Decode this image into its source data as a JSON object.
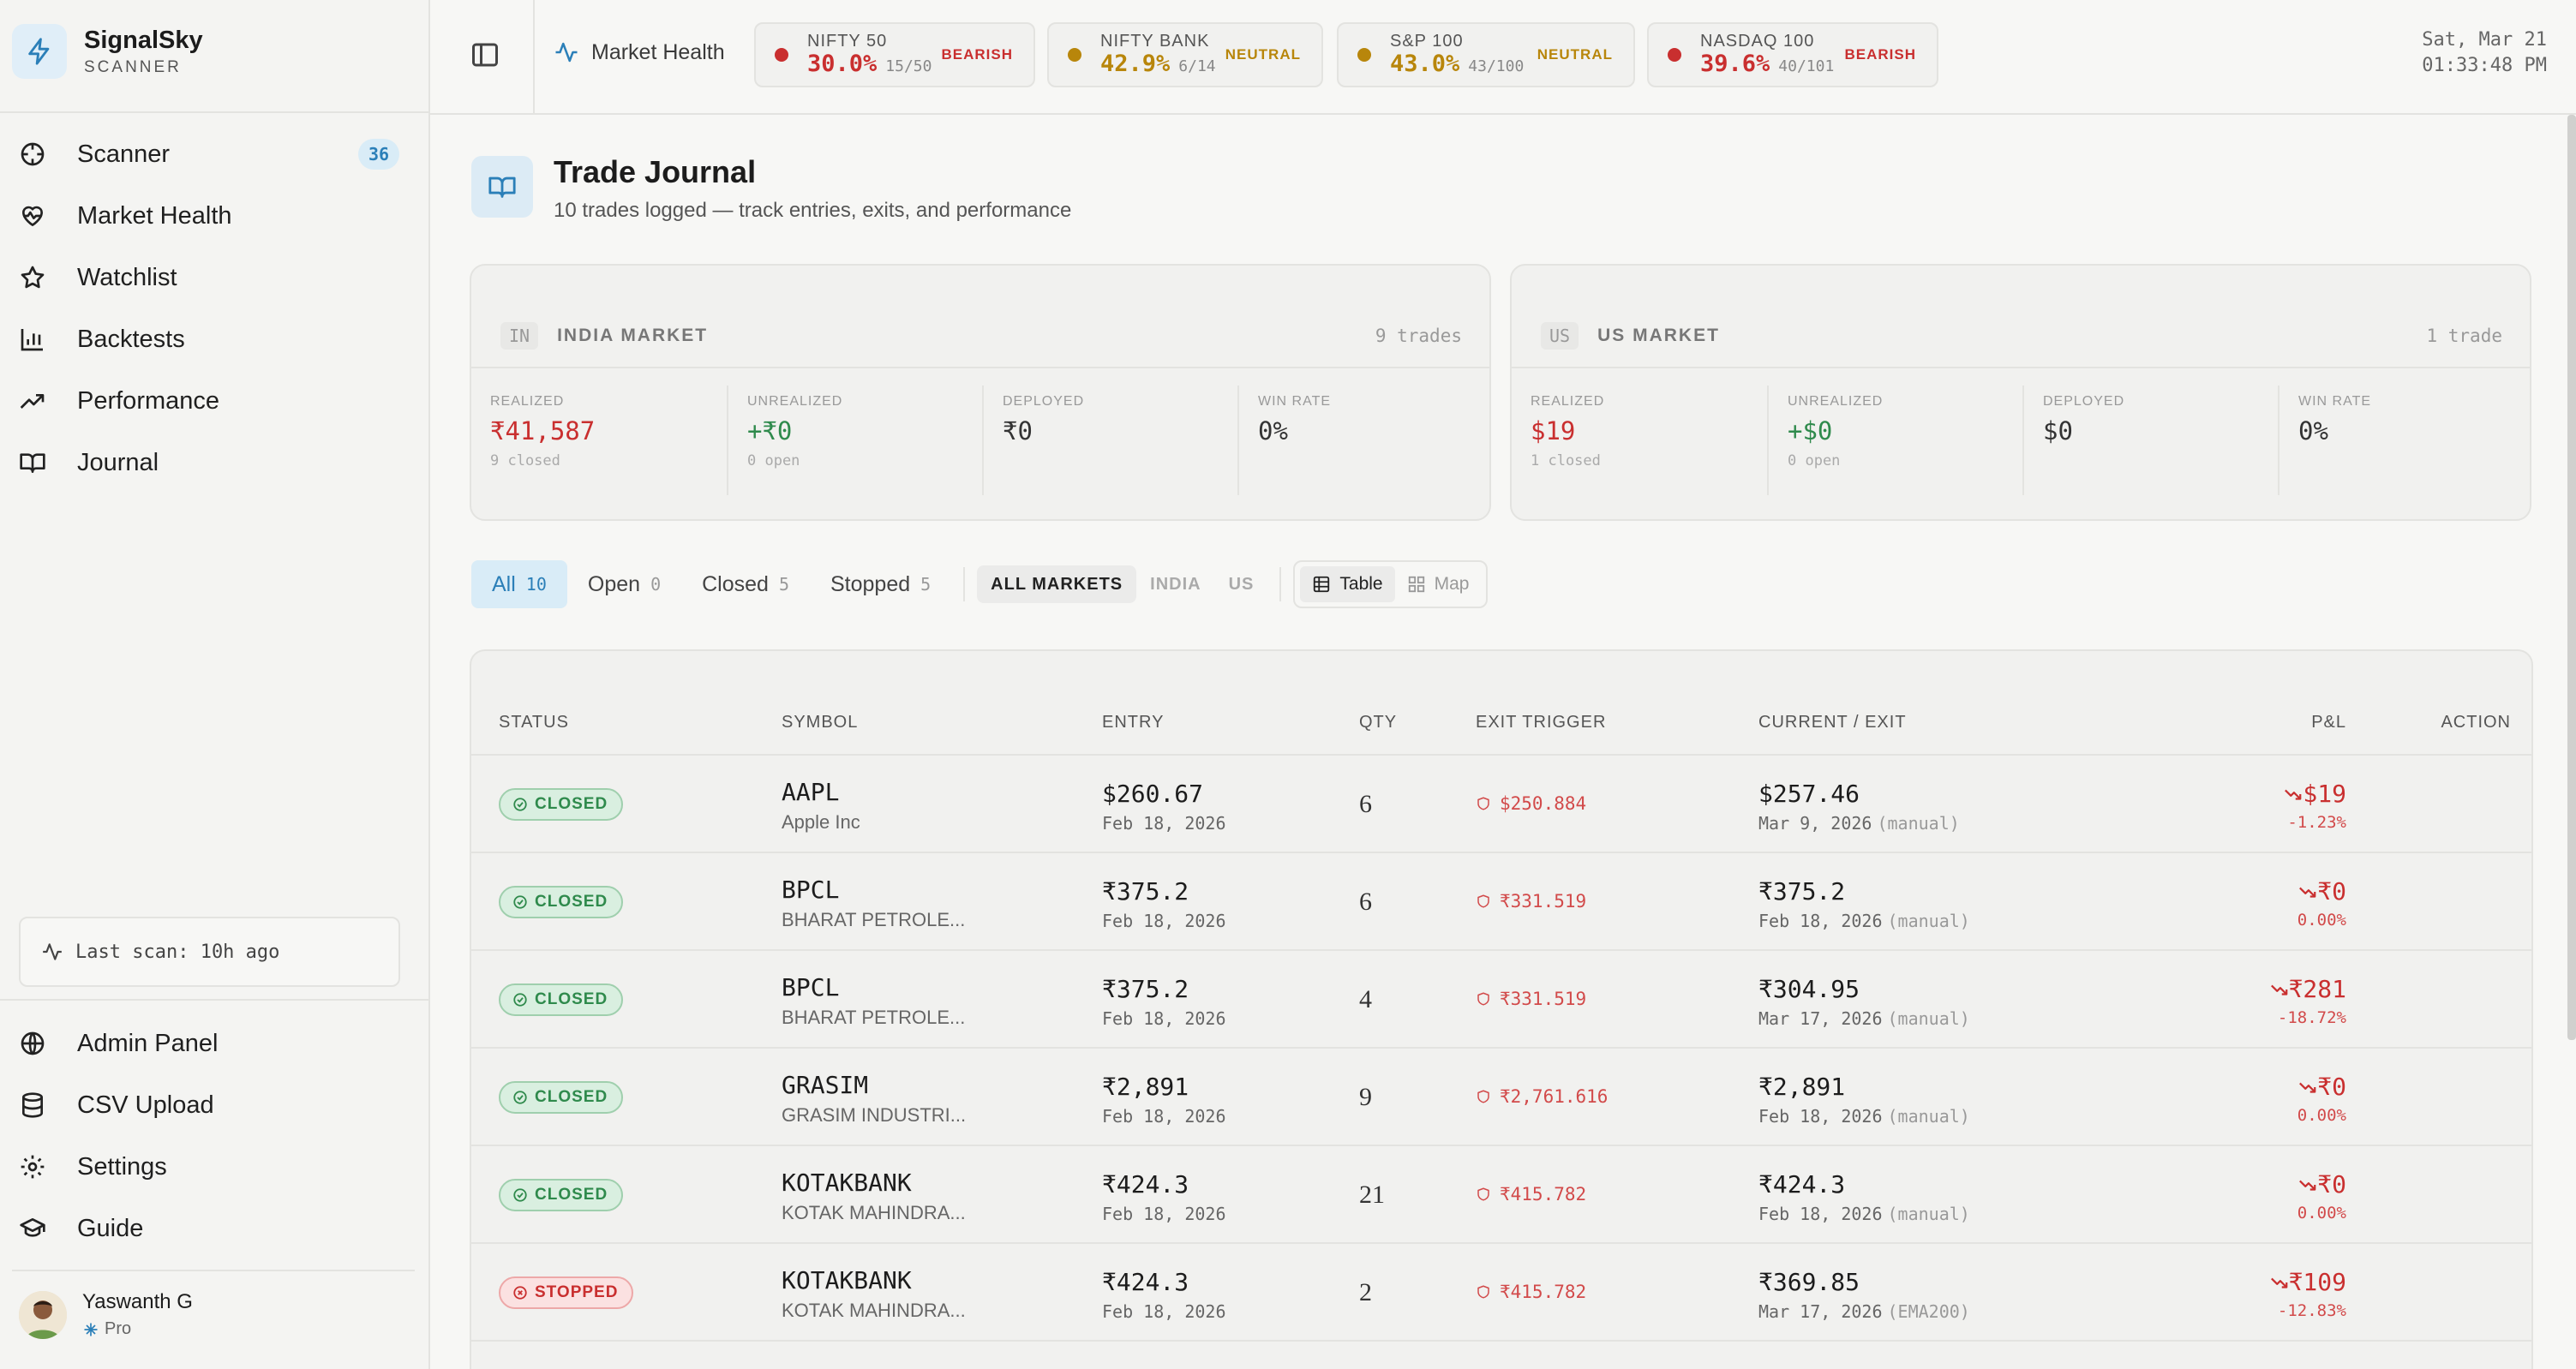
{
  "brand": {
    "name": "SignalSky",
    "subtitle": "SCANNER"
  },
  "nav": {
    "items": [
      {
        "label": "Scanner",
        "icon": "crosshair-icon",
        "badge": "36"
      },
      {
        "label": "Market Health",
        "icon": "heart-pulse-icon"
      },
      {
        "label": "Watchlist",
        "icon": "star-icon"
      },
      {
        "label": "Backtests",
        "icon": "bar-chart-icon"
      },
      {
        "label": "Performance",
        "icon": "trending-up-icon"
      },
      {
        "label": "Journal",
        "icon": "book-icon"
      }
    ],
    "last_scan": "Last scan: 10h ago",
    "bottom": [
      {
        "label": "Admin Panel",
        "icon": "globe-icon"
      },
      {
        "label": "CSV Upload",
        "icon": "database-icon"
      },
      {
        "label": "Settings",
        "icon": "gear-icon"
      },
      {
        "label": "Guide",
        "icon": "graduation-cap-icon"
      }
    ]
  },
  "user": {
    "name": "Yaswanth G",
    "plan": "Pro"
  },
  "topbar": {
    "market_health": "Market Health",
    "indices": [
      {
        "name": "NIFTY 50",
        "pct": "30.0%",
        "frac": "15/50",
        "sentiment": "BEARISH",
        "color": "#c92f2f"
      },
      {
        "name": "NIFTY BANK",
        "pct": "42.9%",
        "frac": "6/14",
        "sentiment": "NEUTRAL",
        "color": "#b8860b"
      },
      {
        "name": "S&P 100",
        "pct": "43.0%",
        "frac": "43/100",
        "sentiment": "NEUTRAL",
        "color": "#b8860b"
      },
      {
        "name": "NASDAQ 100",
        "pct": "39.6%",
        "frac": "40/101",
        "sentiment": "BEARISH",
        "color": "#c92f2f"
      }
    ],
    "date": "Sat, Mar 21",
    "time": "01:33:48 PM"
  },
  "page": {
    "title": "Trade Journal",
    "subtitle": "10 trades logged — track entries, exits, and performance"
  },
  "markets": [
    {
      "code": "IN",
      "name": "INDIA MARKET",
      "count": "9 trades",
      "stats": [
        {
          "label": "REALIZED",
          "value": "₹41,587",
          "sub": "9 closed",
          "color": "#c92f2f"
        },
        {
          "label": "UNREALIZED",
          "value": "+₹0",
          "sub": "0 open",
          "color": "#2f8a4c"
        },
        {
          "label": "DEPLOYED",
          "value": "₹0",
          "sub": "",
          "color": "#333333"
        },
        {
          "label": "WIN RATE",
          "value": "0%",
          "sub": "",
          "color": "#333333"
        }
      ]
    },
    {
      "code": "US",
      "name": "US MARKET",
      "count": "1 trade",
      "stats": [
        {
          "label": "REALIZED",
          "value": "$19",
          "sub": "1 closed",
          "color": "#c92f2f"
        },
        {
          "label": "UNREALIZED",
          "value": "+$0",
          "sub": "0 open",
          "color": "#2f8a4c"
        },
        {
          "label": "DEPLOYED",
          "value": "$0",
          "sub": "",
          "color": "#333333"
        },
        {
          "label": "WIN RATE",
          "value": "0%",
          "sub": "",
          "color": "#333333"
        }
      ]
    }
  ],
  "filters": {
    "status": [
      {
        "label": "All",
        "count": "10"
      },
      {
        "label": "Open",
        "count": "0"
      },
      {
        "label": "Closed",
        "count": "5"
      },
      {
        "label": "Stopped",
        "count": "5"
      }
    ],
    "markets": [
      "ALL MARKETS",
      "INDIA",
      "US"
    ],
    "views": [
      "Table",
      "Map"
    ]
  },
  "table": {
    "columns": [
      "STATUS",
      "SYMBOL",
      "ENTRY",
      "QTY",
      "EXIT TRIGGER",
      "CURRENT / EXIT",
      "P&L",
      "ACTION"
    ],
    "rows": [
      {
        "status": "CLOSED",
        "symbol": "AAPL",
        "name": "Apple Inc",
        "entry": "$260.67",
        "entry_date": "Feb 18, 2026",
        "qty": "6",
        "trigger": "$250.884",
        "current": "$257.46",
        "current_date": "Mar 9, 2026",
        "note": "(manual)",
        "pnl": "$19",
        "pnl_pct": "-1.23%"
      },
      {
        "status": "CLOSED",
        "symbol": "BPCL",
        "name": "BHARAT PETROLE...",
        "entry": "₹375.2",
        "entry_date": "Feb 18, 2026",
        "qty": "6",
        "trigger": "₹331.519",
        "current": "₹375.2",
        "current_date": "Feb 18, 2026",
        "note": "(manual)",
        "pnl": "₹0",
        "pnl_pct": "0.00%"
      },
      {
        "status": "CLOSED",
        "symbol": "BPCL",
        "name": "BHARAT PETROLE...",
        "entry": "₹375.2",
        "entry_date": "Feb 18, 2026",
        "qty": "4",
        "trigger": "₹331.519",
        "current": "₹304.95",
        "current_date": "Mar 17, 2026",
        "note": "(manual)",
        "pnl": "₹281",
        "pnl_pct": "-18.72%"
      },
      {
        "status": "CLOSED",
        "symbol": "GRASIM",
        "name": "GRASIM INDUSTRI...",
        "entry": "₹2,891",
        "entry_date": "Feb 18, 2026",
        "qty": "9",
        "trigger": "₹2,761.616",
        "current": "₹2,891",
        "current_date": "Feb 18, 2026",
        "note": "(manual)",
        "pnl": "₹0",
        "pnl_pct": "0.00%"
      },
      {
        "status": "CLOSED",
        "symbol": "KOTAKBANK",
        "name": "KOTAK MAHINDRA...",
        "entry": "₹424.3",
        "entry_date": "Feb 18, 2026",
        "qty": "21",
        "trigger": "₹415.782",
        "current": "₹424.3",
        "current_date": "Feb 18, 2026",
        "note": "(manual)",
        "pnl": "₹0",
        "pnl_pct": "0.00%"
      },
      {
        "status": "STOPPED",
        "symbol": "KOTAKBANK",
        "name": "KOTAK MAHINDRA...",
        "entry": "₹424.3",
        "entry_date": "Feb 18, 2026",
        "qty": "2",
        "trigger": "₹415.782",
        "current": "₹369.85",
        "current_date": "Mar 17, 2026",
        "note": "(EMA200)",
        "pnl": "₹109",
        "pnl_pct": "-12.83%"
      }
    ]
  }
}
